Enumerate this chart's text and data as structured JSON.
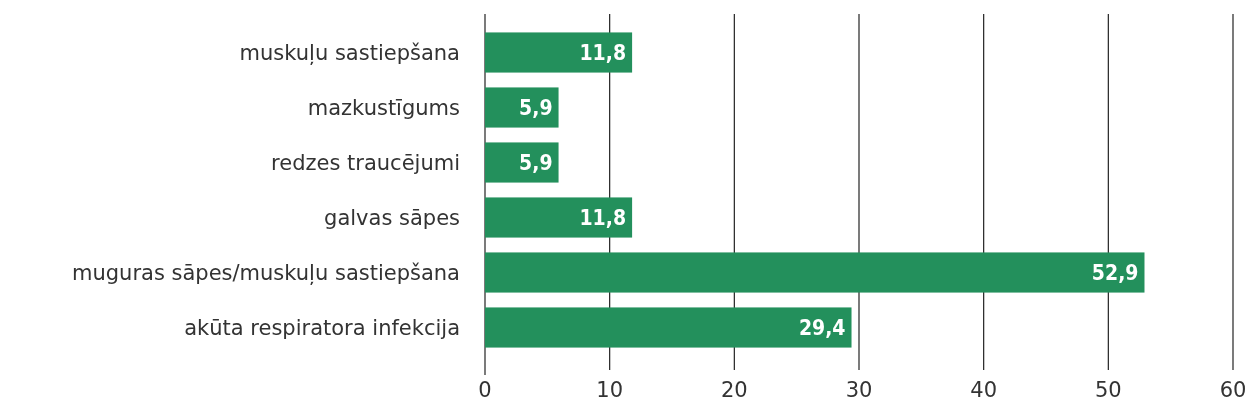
{
  "chart_data": {
    "type": "bar",
    "orientation": "horizontal",
    "categories": [
      "muskuļu sastiepšana",
      "mazkustīgums",
      "redzes traucējumi",
      "galvas sāpes",
      "muguras sāpes/muskuļu sastiepšana",
      "akūta respiratora infekcija"
    ],
    "values": [
      11.8,
      5.9,
      5.9,
      11.8,
      52.9,
      29.4
    ],
    "value_labels": [
      "11,8",
      "5,9",
      "5,9",
      "11,8",
      "52,9",
      "29,4"
    ],
    "color": "#23905c",
    "xlim": [
      0,
      60
    ],
    "xticks": [
      0,
      10,
      20,
      30,
      40,
      50,
      60
    ],
    "grid": "x"
  }
}
